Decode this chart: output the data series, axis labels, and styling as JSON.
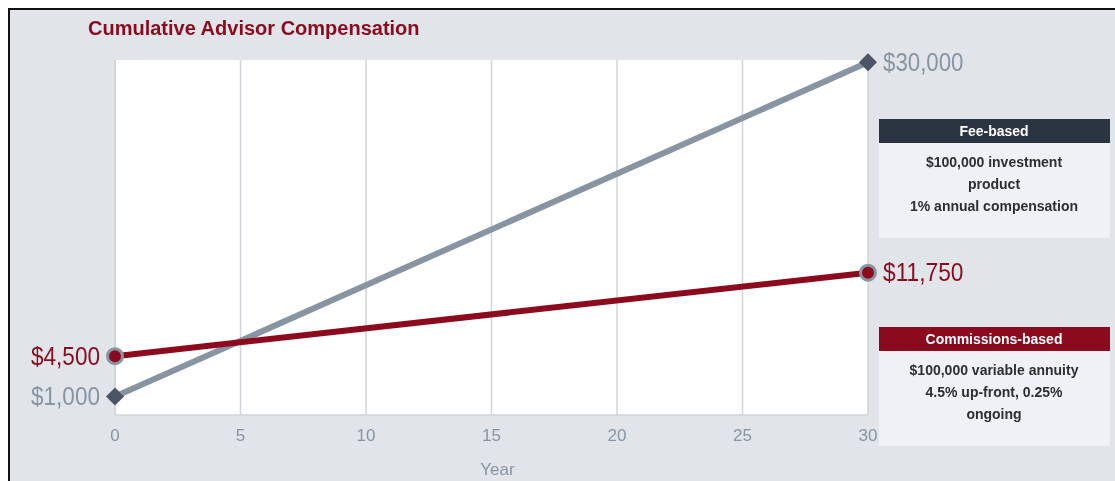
{
  "chart_data": {
    "type": "line",
    "title": "Cumulative Advisor Compensation",
    "xlabel": "Year",
    "x": [
      0,
      30
    ],
    "xlim": [
      0,
      30
    ],
    "xticks": [
      0,
      5,
      10,
      15,
      20,
      25,
      30
    ],
    "ylim": [
      -600,
      30200
    ],
    "tick_labels": "x",
    "grid": "x",
    "legend": "right",
    "series": [
      {
        "name": "Fee-based",
        "color": "#8795a3",
        "marker": "diamond",
        "values": [
          1000,
          30000
        ],
        "value_labels": [
          "$1,000",
          "$30,000"
        ]
      },
      {
        "name": "Commissions-based",
        "color": "#8b0a1e",
        "marker": "circle",
        "values": [
          4500,
          11750
        ],
        "value_labels": [
          "$4,500",
          "$11,750"
        ]
      }
    ],
    "annotations": [
      "$100,000 investment product",
      "1% annual compensation",
      "$100,000 variable annuity",
      "4.5% up-front, 0.25% ongoing"
    ]
  }
}
